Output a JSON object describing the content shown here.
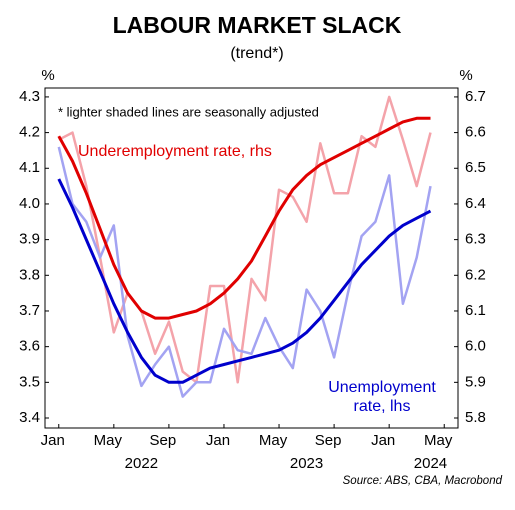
{
  "chart_data": {
    "type": "line",
    "title": "LABOUR MARKET SLACK",
    "subtitle": "(trend*)",
    "y_unit": "%",
    "y2_unit": "%",
    "source": "Source: ABS, CBA, Macrobond",
    "note": "*  lighter shaded lines are seasonally adjusted",
    "annotations": [
      {
        "lines": [
          "Underemployment rate, rhs"
        ],
        "color": "#e00000"
      },
      {
        "lines": [
          "Unemployment",
          "rate, lhs"
        ],
        "color": "#0000cc"
      }
    ],
    "x": [
      "2022-01",
      "2022-02",
      "2022-03",
      "2022-04",
      "2022-05",
      "2022-06",
      "2022-07",
      "2022-08",
      "2022-09",
      "2022-10",
      "2022-11",
      "2022-12",
      "2023-01",
      "2023-02",
      "2023-03",
      "2023-04",
      "2023-05",
      "2023-06",
      "2023-07",
      "2023-08",
      "2023-09",
      "2023-10",
      "2023-11",
      "2023-12",
      "2024-01",
      "2024-02",
      "2024-03",
      "2024-04"
    ],
    "xlim": [
      "2021-12",
      "2024-06"
    ],
    "xticks": [
      {
        "value": "2022-01",
        "label": "Jan"
      },
      {
        "value": "2022-05",
        "label": "May"
      },
      {
        "value": "2022-09",
        "label": "Sep"
      },
      {
        "value": "2023-01",
        "label": "Jan"
      },
      {
        "value": "2023-05",
        "label": "May"
      },
      {
        "value": "2023-09",
        "label": "Sep"
      },
      {
        "value": "2024-01",
        "label": "Jan"
      },
      {
        "value": "2024-05",
        "label": "May"
      }
    ],
    "year_labels": [
      {
        "value": "2022-07",
        "label": "2022"
      },
      {
        "value": "2023-07",
        "label": "2023"
      },
      {
        "value": "2024-04",
        "label": "2024"
      }
    ],
    "ylim": [
      3.372,
      4.325
    ],
    "yticks": [
      3.4,
      3.5,
      3.6,
      3.7,
      3.8,
      3.9,
      {
        "value": 4,
        "label": "4.0"
      },
      4.1,
      4.2,
      4.3
    ],
    "y2lim": [
      5.772,
      6.725
    ],
    "y2ticks": [
      5.8,
      5.9,
      {
        "value": 6,
        "label": "6.0"
      },
      6.1,
      6.2,
      6.3,
      6.4,
      6.5,
      6.6,
      6.7
    ],
    "series": [
      {
        "color": "#f4a3aa",
        "axis": "y2",
        "width": 2.5,
        "values": [
          6.58,
          6.6,
          6.45,
          6.25,
          6.04,
          6.15,
          6.1,
          5.98,
          6.07,
          5.93,
          5.9,
          6.17,
          6.17,
          5.9,
          6.19,
          6.13,
          6.44,
          6.42,
          6.35,
          6.57,
          6.43,
          6.43,
          6.59,
          6.56,
          6.7,
          6.58,
          6.45,
          6.6
        ]
      },
      {
        "color": "#a3a3f2",
        "axis": "y",
        "width": 2.5,
        "values": [
          4.16,
          4.0,
          3.95,
          3.85,
          3.94,
          3.63,
          3.49,
          3.55,
          3.6,
          3.46,
          3.5,
          3.5,
          3.65,
          3.59,
          3.58,
          3.68,
          3.6,
          3.54,
          3.76,
          3.7,
          3.57,
          3.75,
          3.91,
          3.95,
          4.08,
          3.72,
          3.85,
          4.05
        ]
      },
      {
        "color": "#e00000",
        "axis": "y2",
        "width": 3,
        "values": [
          6.59,
          6.52,
          6.43,
          6.33,
          6.23,
          6.15,
          6.1,
          6.08,
          6.08,
          6.09,
          6.1,
          6.12,
          6.15,
          6.19,
          6.24,
          6.31,
          6.38,
          6.44,
          6.48,
          6.51,
          6.53,
          6.55,
          6.57,
          6.59,
          6.61,
          6.63,
          6.64,
          6.64
        ]
      },
      {
        "color": "#0000cc",
        "axis": "y",
        "width": 3,
        "values": [
          4.07,
          3.99,
          3.9,
          3.81,
          3.72,
          3.64,
          3.57,
          3.52,
          3.5,
          3.5,
          3.52,
          3.54,
          3.55,
          3.56,
          3.57,
          3.58,
          3.59,
          3.61,
          3.64,
          3.68,
          3.73,
          3.78,
          3.83,
          3.87,
          3.91,
          3.94,
          3.96,
          3.98
        ]
      }
    ]
  }
}
